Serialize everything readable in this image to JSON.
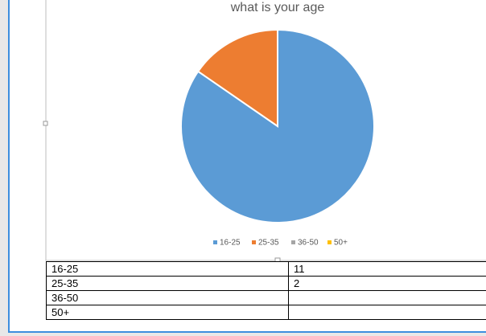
{
  "chart_data": {
    "type": "pie",
    "title": "what is your age",
    "categories": [
      "16-25",
      "25-35",
      "36-50",
      "50+"
    ],
    "values": [
      11,
      2,
      0,
      0
    ],
    "colors": [
      "#5b9bd5",
      "#ed7d31",
      "#a5a5a5",
      "#ffc000"
    ],
    "legend": "bottom"
  },
  "table": {
    "rows": [
      [
        "16-25",
        11
      ],
      [
        "25-35",
        2
      ],
      [
        "36-50",
        null
      ],
      [
        "50+",
        null
      ]
    ]
  }
}
